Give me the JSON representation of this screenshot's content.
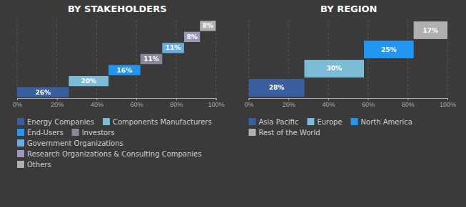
{
  "chart_data": [
    {
      "type": "waterfall",
      "orientation": "horizontal",
      "title": "BY STAKEHOLDERS",
      "series": [
        {
          "name": "Energy Companies",
          "color": "#3a5f9e",
          "values": [
            26
          ],
          "value_labels": [
            "26%"
          ]
        },
        {
          "name": "Components Manufacturers",
          "color": "#7bbcd6",
          "values": [
            20
          ],
          "value_labels": [
            "20%"
          ]
        },
        {
          "name": "End-Users",
          "color": "#2196f3",
          "values": [
            16
          ],
          "value_labels": [
            "16%"
          ]
        },
        {
          "name": "Investors",
          "color": "#888899",
          "values": [
            11
          ],
          "value_labels": [
            "11%"
          ]
        },
        {
          "name": "Government Organizations",
          "color": "#6aade0",
          "values": [
            11
          ],
          "value_labels": [
            "11%"
          ]
        },
        {
          "name": "Research Organizations & Consulting Companies",
          "color": "#9999bb",
          "values": [
            8
          ],
          "value_labels": [
            "8%"
          ]
        },
        {
          "name": "Others",
          "color": "#b0b0b0",
          "values": [
            8
          ],
          "value_labels": [
            "8%"
          ]
        }
      ],
      "xlim": [
        0,
        100
      ],
      "xticks": [
        {
          "value": 0,
          "label": "0%"
        },
        {
          "value": 20,
          "label": "20%"
        },
        {
          "value": 40,
          "label": "40%"
        },
        {
          "value": 60,
          "label": "60%"
        },
        {
          "value": 80,
          "label": "80%"
        },
        {
          "value": 100,
          "label": "100%"
        }
      ],
      "grid": true,
      "data_labels": true,
      "tick_labels": "x",
      "legend": "bottom"
    },
    {
      "type": "waterfall",
      "orientation": "horizontal",
      "title": "BY REGION",
      "series": [
        {
          "name": "Asia Pacific",
          "color": "#3a5f9e",
          "values": [
            28
          ],
          "value_labels": [
            "28%"
          ]
        },
        {
          "name": "Europe",
          "color": "#7bbcd6",
          "values": [
            30
          ],
          "value_labels": [
            "30%"
          ]
        },
        {
          "name": "North America",
          "color": "#2196f3",
          "values": [
            25
          ],
          "value_labels": [
            "25%"
          ]
        },
        {
          "name": "Rest of the World",
          "color": "#b0b0b0",
          "values": [
            17
          ],
          "value_labels": [
            "17%"
          ]
        }
      ],
      "xlim": [
        0,
        100
      ],
      "xticks": [
        {
          "value": 0,
          "label": "0%"
        },
        {
          "value": 20,
          "label": "20%"
        },
        {
          "value": 40,
          "label": "40%"
        },
        {
          "value": 60,
          "label": "60%"
        },
        {
          "value": 80,
          "label": "80%"
        },
        {
          "value": 100,
          "label": "100%"
        }
      ],
      "grid": true,
      "data_labels": true,
      "tick_labels": "x",
      "legend": "bottom"
    }
  ]
}
